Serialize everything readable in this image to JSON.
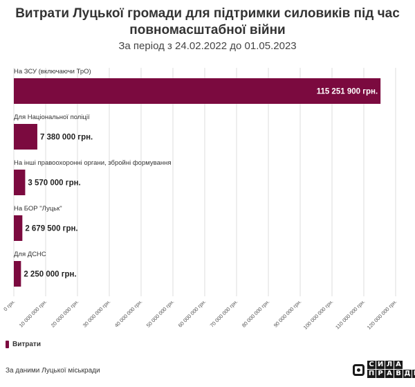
{
  "header": {
    "title_line1": "Витрати Луцької громади для підтримки силовиків під час",
    "title_line2": "повномасштабної війни",
    "subtitle": "За період з 24.02.2022 до 01.05.2023"
  },
  "colors": {
    "bar": "#7b0a3f",
    "grid": "#dddddd",
    "label": "#333333"
  },
  "chart_data": {
    "type": "bar",
    "orientation": "horizontal",
    "categories": [
      "На ЗСУ (включаючи ТрО)",
      "Для Національної поліції",
      "На інші правоохоронні органи, збройні формування",
      "На БОР \"Луцьк\"",
      "Для ДСНС"
    ],
    "values": [
      115251900,
      7380000,
      3570000,
      2679500,
      2250000
    ],
    "value_labels": [
      "115 251 900 грн.",
      "7 380 000 грн.",
      "3 570 000 грн.",
      "2 679 500 грн.",
      "2 250 000 грн."
    ],
    "series": [
      {
        "name": "Витрати",
        "values": [
          115251900,
          7380000,
          3570000,
          2679500,
          2250000
        ]
      }
    ],
    "xlim": [
      0,
      120000000
    ],
    "x_ticks": [
      0,
      10000000,
      20000000,
      30000000,
      40000000,
      50000000,
      60000000,
      70000000,
      80000000,
      90000000,
      100000000,
      110000000,
      120000000
    ],
    "x_tick_labels": [
      "0 грн.",
      "10 000 000 грн.",
      "20 000 000 грн.",
      "30 000 000 грн.",
      "40 000 000 грн.",
      "50 000 000 грн.",
      "60 000 000 грн.",
      "70 000 000 грн.",
      "80 000 000 грн.",
      "90 000 000 грн.",
      "100 000 000 грн.",
      "110 000 000 грн.",
      "120 000 000 грн."
    ],
    "grid": true,
    "legend_position": "bottom-left"
  },
  "legend": {
    "label": "Витрати"
  },
  "footer": {
    "source": "За даними Луцької міськради",
    "logo_line1": [
      "С",
      "И",
      "Л",
      "А"
    ],
    "logo_line2": [
      "П",
      "Р",
      "А",
      "В",
      "Д",
      "И"
    ]
  }
}
